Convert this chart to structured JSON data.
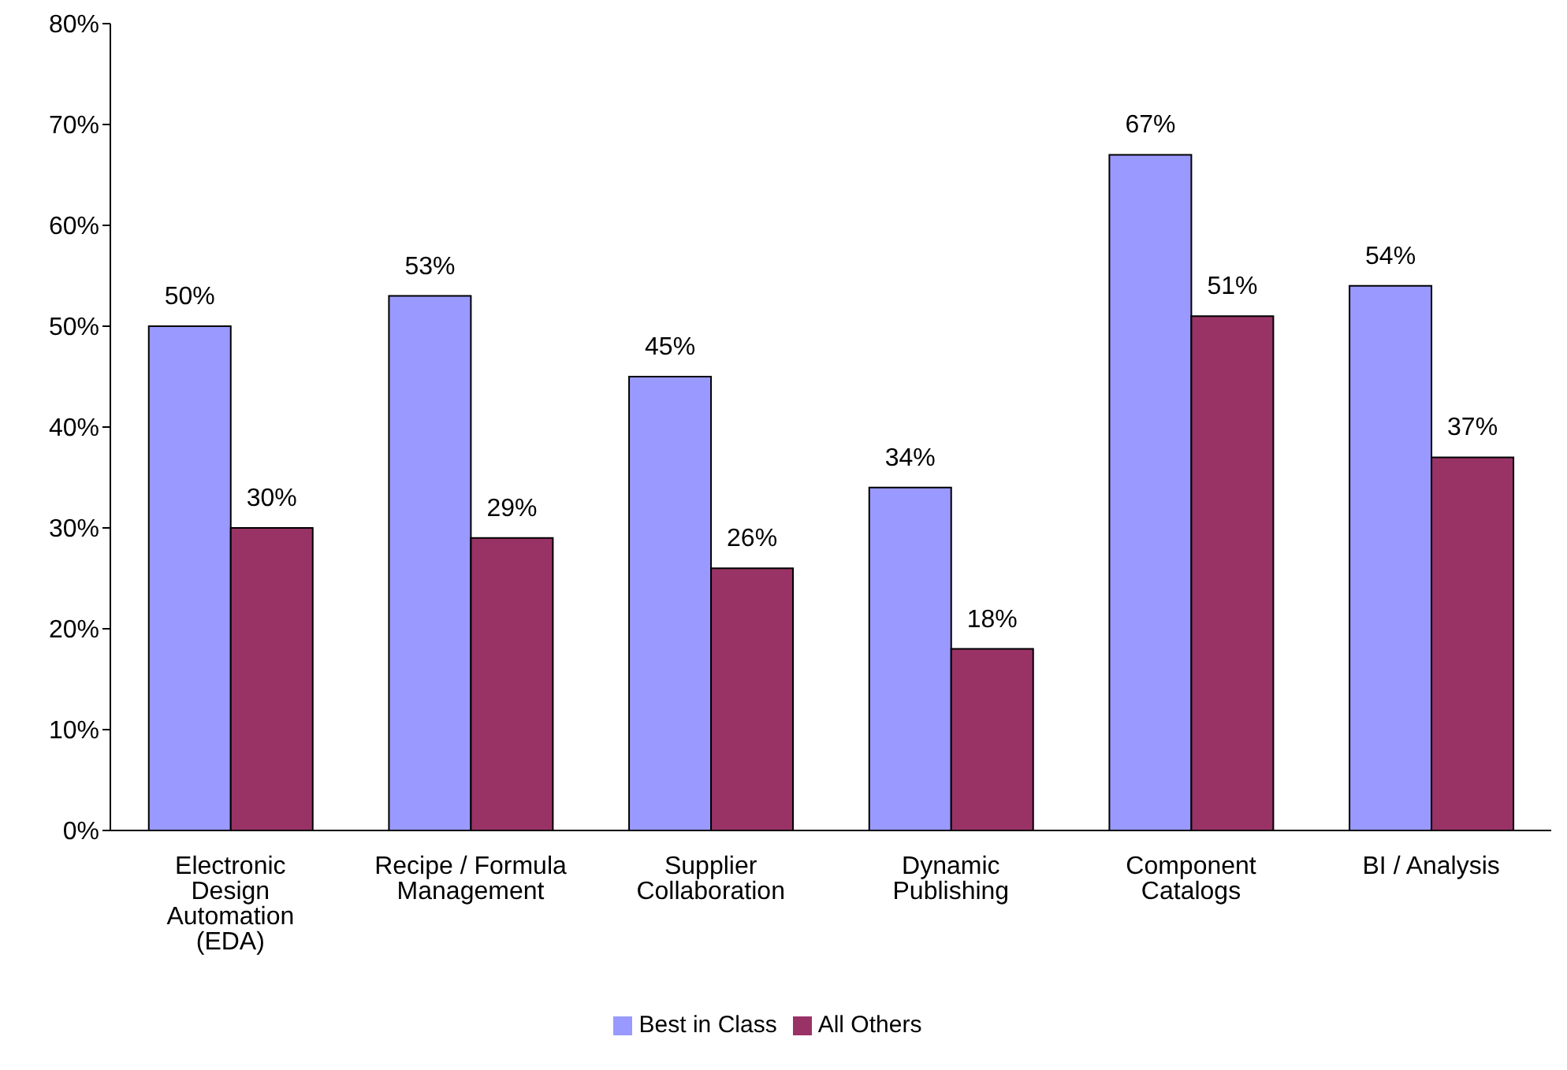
{
  "chart_data": {
    "type": "bar",
    "categories": [
      "Electronic Design Automation (EDA)",
      "Recipe / Formula Management",
      "Supplier Collaboration",
      "Dynamic Publishing",
      "Component Catalogs",
      "BI / Analysis"
    ],
    "series": [
      {
        "name": "Best in Class",
        "color": "#9999ff",
        "values": [
          50,
          53,
          45,
          34,
          67,
          54
        ],
        "value_labels": [
          "50%",
          "53%",
          "45%",
          "34%",
          "67%",
          "54%"
        ]
      },
      {
        "name": "All Others",
        "color": "#993366",
        "values": [
          30,
          29,
          26,
          18,
          51,
          37
        ],
        "value_labels": [
          "30%",
          "29%",
          "26%",
          "18%",
          "51%",
          "37%"
        ]
      }
    ],
    "ylim": [
      0,
      80
    ],
    "yticks": [
      {
        "value": 0,
        "label": "0%"
      },
      {
        "value": 10,
        "label": "10%"
      },
      {
        "value": 20,
        "label": "20%"
      },
      {
        "value": 30,
        "label": "30%"
      },
      {
        "value": 40,
        "label": "40%"
      },
      {
        "value": 50,
        "label": "50%"
      },
      {
        "value": 60,
        "label": "60%"
      },
      {
        "value": 70,
        "label": "70%"
      },
      {
        "value": 80,
        "label": "80%"
      }
    ],
    "legend": "bottom"
  }
}
